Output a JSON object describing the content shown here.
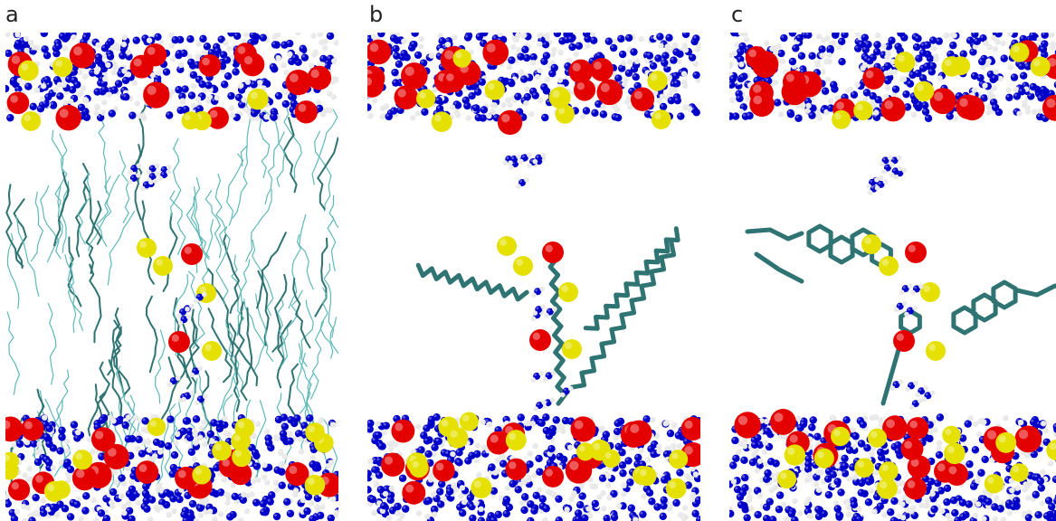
{
  "panels": [
    {
      "label": "a",
      "content": "membrane-cross-section-with-dense-lipid-tails"
    },
    {
      "label": "b",
      "content": "ion-channel-with-lipid-molecules"
    },
    {
      "label": "c",
      "content": "ion-channel-with-cholesterol-molecules"
    }
  ],
  "colors": {
    "oxygen": "#e50000",
    "sulfur_or_phosphate": "#e5e000",
    "nitrogen": "#0000c8",
    "hydrogen": "#e8e8e8",
    "lipid_tail_light": "#5fb8b8",
    "lipid_tail_dark": "#2f7373"
  }
}
